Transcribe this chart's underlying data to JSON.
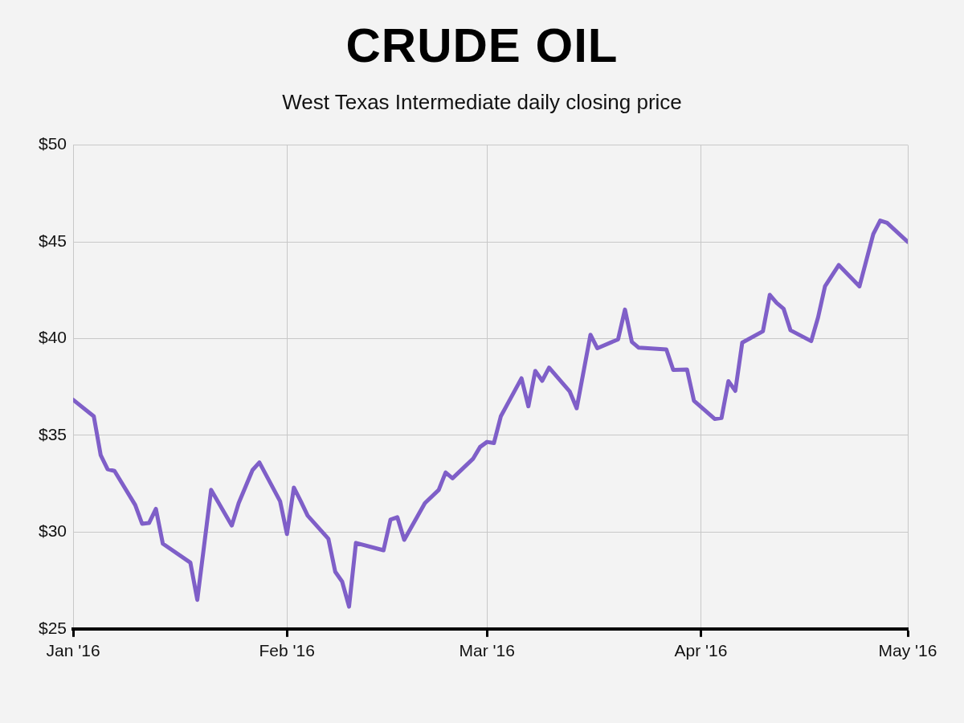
{
  "chart_data": {
    "type": "line",
    "title": "CRUDE OIL",
    "subtitle": "West Texas Intermediate daily closing price",
    "x": [
      "2016-01-01",
      "2016-01-04",
      "2016-01-05",
      "2016-01-06",
      "2016-01-07",
      "2016-01-10",
      "2016-01-11",
      "2016-01-12",
      "2016-01-13",
      "2016-01-14",
      "2016-01-18",
      "2016-01-19",
      "2016-01-21",
      "2016-01-24",
      "2016-01-25",
      "2016-01-27",
      "2016-01-28",
      "2016-01-31",
      "2016-02-01",
      "2016-02-02",
      "2016-02-03",
      "2016-02-04",
      "2016-02-07",
      "2016-02-08",
      "2016-02-09",
      "2016-02-10",
      "2016-02-11",
      "2016-02-15",
      "2016-02-16",
      "2016-02-17",
      "2016-02-18",
      "2016-02-21",
      "2016-02-23",
      "2016-02-24",
      "2016-02-25",
      "2016-02-28",
      "2016-02-29",
      "2016-03-01",
      "2016-03-02",
      "2016-03-03",
      "2016-03-06",
      "2016-03-07",
      "2016-03-08",
      "2016-03-09",
      "2016-03-10",
      "2016-03-13",
      "2016-03-14",
      "2016-03-16",
      "2016-03-17",
      "2016-03-20",
      "2016-03-21",
      "2016-03-22",
      "2016-03-23",
      "2016-03-27",
      "2016-03-28",
      "2016-03-30",
      "2016-03-31",
      "2016-04-03",
      "2016-04-04",
      "2016-04-05",
      "2016-04-06",
      "2016-04-07",
      "2016-04-10",
      "2016-04-11",
      "2016-04-12",
      "2016-04-13",
      "2016-04-14",
      "2016-04-17",
      "2016-04-18",
      "2016-04-19",
      "2016-04-21",
      "2016-04-24",
      "2016-04-26",
      "2016-04-27",
      "2016-04-28",
      "2016-05-01"
    ],
    "series": [
      {
        "color": "#7f5fc8",
        "values": [
          36.84,
          35.98,
          33.97,
          33.25,
          33.16,
          31.4,
          30.43,
          30.47,
          31.2,
          29.4,
          28.42,
          26.5,
          32.18,
          30.34,
          31.5,
          33.2,
          33.6,
          31.6,
          29.9,
          32.3,
          31.6,
          30.85,
          29.66,
          27.95,
          27.44,
          26.15,
          29.44,
          29.06,
          30.64,
          30.77,
          29.6,
          31.5,
          32.18,
          33.08,
          32.78,
          33.8,
          34.4,
          34.66,
          34.6,
          35.98,
          37.95,
          36.5,
          38.33,
          37.82,
          38.5,
          37.26,
          36.4,
          40.2,
          39.5,
          39.96,
          41.5,
          39.83,
          39.53,
          39.44,
          38.38,
          38.4,
          36.79,
          35.85,
          35.9,
          37.8,
          37.3,
          39.79,
          40.38,
          42.26,
          41.84,
          41.54,
          40.43,
          39.87,
          41.1,
          42.7,
          43.8,
          42.7,
          45.4,
          46.1,
          45.98,
          45.0
        ]
      }
    ],
    "xlim": [
      "2016-01-01",
      "2016-05-01"
    ],
    "xticks": [
      {
        "value": "2016-01-01",
        "label": "Jan '16"
      },
      {
        "value": "2016-02-01",
        "label": "Feb '16"
      },
      {
        "value": "2016-03-01",
        "label": "Mar '16"
      },
      {
        "value": "2016-04-01",
        "label": "Apr '16"
      },
      {
        "value": "2016-05-01",
        "label": "May '16"
      }
    ],
    "ylim": [
      25,
      50
    ],
    "yticks": [
      {
        "value": 25,
        "label": "$25"
      },
      {
        "value": 30,
        "label": "$30"
      },
      {
        "value": 35,
        "label": "$35"
      },
      {
        "value": 40,
        "label": "$40"
      },
      {
        "value": 45,
        "label": "$45"
      },
      {
        "value": 50,
        "label": "$50"
      }
    ],
    "grid": true,
    "legend": false,
    "marker": "none",
    "line_style": "solid"
  }
}
